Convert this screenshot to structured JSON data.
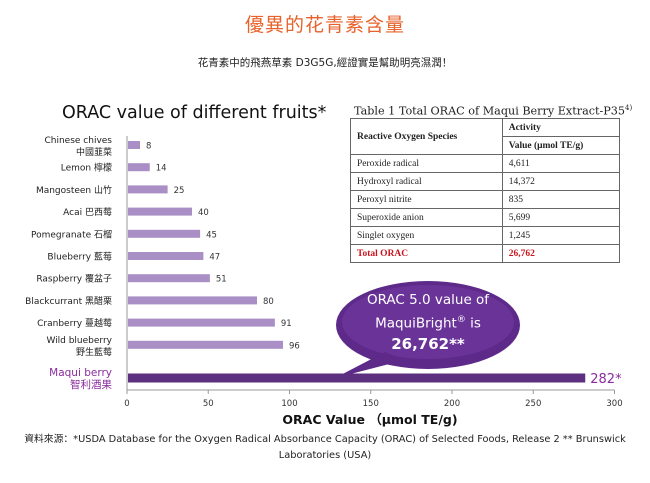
{
  "page": {
    "headline": "優異的花青素含量",
    "subhead": "花青素中的飛燕草素 D3G5G,經證實是幫助明亮濕潤！",
    "footnote": "資料來源：*USDA Database for the Oxygen Radical Absorbance Capacity (ORAC) of Selected Foods, Release 2 ** Brunswick Laboratories (USA)",
    "headline_color": "#e8622b"
  },
  "chart_data": {
    "type": "bar",
    "orientation": "horizontal",
    "title": "ORAC value of different fruits*",
    "xlabel": "ORAC   Value  （μmol TE/g)",
    "xlim": [
      0,
      300
    ],
    "xticks": [
      0,
      50,
      100,
      150,
      200,
      250,
      300
    ],
    "grid": false,
    "categories": [
      {
        "name": "Chinese chives",
        "sub": "中國韮菜"
      },
      {
        "name": "Lemon 檸檬",
        "sub": ""
      },
      {
        "name": "Mangosteen  山竹",
        "sub": ""
      },
      {
        "name": "Acai 巴西莓",
        "sub": ""
      },
      {
        "name": "Pomegranate 石榴",
        "sub": ""
      },
      {
        "name": "Blueberry 藍莓",
        "sub": ""
      },
      {
        "name": "Raspberry 覆盆子",
        "sub": ""
      },
      {
        "name": "Blackcurrant 黑醋栗",
        "sub": ""
      },
      {
        "name": "Cranberry 蔓越莓",
        "sub": ""
      },
      {
        "name": "Wild blueberry",
        "sub": "野生藍莓"
      },
      {
        "name": "Maqui berry",
        "sub": "智利酒果"
      }
    ],
    "values": [
      8,
      14,
      25,
      40,
      45,
      47,
      51,
      80,
      91,
      96,
      282
    ],
    "value_labels": [
      "8",
      "14",
      "25",
      "40",
      "45",
      "47",
      "51",
      "80",
      "91",
      "96",
      "282*"
    ],
    "highlight_index": 10,
    "colors": {
      "bar": "#a98fc5",
      "highlight": "#5c2f7f",
      "highlight_text": "#8a2c9e",
      "callout": "#5e2a8a"
    }
  },
  "table": {
    "caption": "Table 1 Total ORAC of Maqui Berry Extract-P35",
    "caption_sup": "4)",
    "header_col1": "Reactive Oxygen Species",
    "header_col2_line1": "Activity",
    "header_col2_line2": "Value (μmol TE/g)",
    "rows": [
      {
        "species": "Peroxide radical",
        "value": "4,611"
      },
      {
        "species": "Hydroxyl radical",
        "value": "14,372"
      },
      {
        "species": "Peroxyl nitrite",
        "value": "835"
      },
      {
        "species": "Superoxide anion",
        "value": "5,699"
      },
      {
        "species": "Singlet oxygen",
        "value": "1,245"
      }
    ],
    "total_label": "Total ORAC",
    "total_value": "26,762"
  },
  "callout": {
    "line1": "ORAC 5.0 value of",
    "line2_main": "MaquiBright",
    "line2_sup": "®",
    "line2_tail": " is",
    "line3": "26,762**"
  }
}
